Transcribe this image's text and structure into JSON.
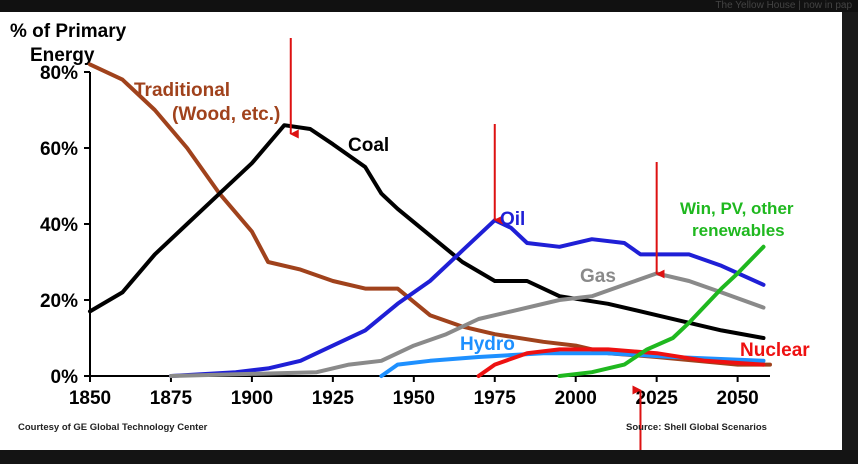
{
  "top_strip_text": "The Yellow House | now in pap",
  "chart_data": {
    "type": "line",
    "ylabel": "% of Primary Energy",
    "ylabel_lines": [
      "% of Primary",
      "Energy"
    ],
    "xlim": [
      1850,
      2060
    ],
    "ylim": [
      0,
      80
    ],
    "x_ticks": [
      "1850",
      "1875",
      "1900",
      "1925",
      "1950",
      "1975",
      "2000",
      "2025",
      "2050"
    ],
    "y_ticks": [
      "0%",
      "20%",
      "40%",
      "60%",
      "80%"
    ],
    "grid": false,
    "series": [
      {
        "name": "Traditional (Wood, etc.)",
        "label_lines": [
          "Traditional",
          "(Wood, etc.)"
        ],
        "color": "#a0421c",
        "points": [
          [
            1850,
            82
          ],
          [
            1860,
            78
          ],
          [
            1870,
            70
          ],
          [
            1880,
            60
          ],
          [
            1890,
            48
          ],
          [
            1900,
            38
          ],
          [
            1905,
            30
          ],
          [
            1915,
            28
          ],
          [
            1925,
            25
          ],
          [
            1935,
            23
          ],
          [
            1945,
            23
          ],
          [
            1955,
            16
          ],
          [
            1965,
            13
          ],
          [
            1975,
            11
          ],
          [
            1990,
            9
          ],
          [
            2000,
            8
          ],
          [
            2010,
            6
          ],
          [
            2025,
            5
          ],
          [
            2050,
            3
          ],
          [
            2060,
            3
          ]
        ]
      },
      {
        "name": "Coal",
        "label_lines": [
          "Coal"
        ],
        "color": "#000000",
        "points": [
          [
            1850,
            17
          ],
          [
            1860,
            22
          ],
          [
            1870,
            32
          ],
          [
            1880,
            40
          ],
          [
            1890,
            48
          ],
          [
            1900,
            56
          ],
          [
            1910,
            66
          ],
          [
            1918,
            65
          ],
          [
            1925,
            61
          ],
          [
            1935,
            55
          ],
          [
            1940,
            48
          ],
          [
            1945,
            44
          ],
          [
            1955,
            37
          ],
          [
            1965,
            30
          ],
          [
            1975,
            25
          ],
          [
            1985,
            25
          ],
          [
            1995,
            21
          ],
          [
            2010,
            19
          ],
          [
            2025,
            16
          ],
          [
            2045,
            12
          ],
          [
            2058,
            10
          ]
        ]
      },
      {
        "name": "Oil",
        "label_lines": [
          "Oil"
        ],
        "color": "#1f1fd6",
        "points": [
          [
            1875,
            0
          ],
          [
            1895,
            1
          ],
          [
            1905,
            2
          ],
          [
            1915,
            4
          ],
          [
            1925,
            8
          ],
          [
            1935,
            12
          ],
          [
            1945,
            19
          ],
          [
            1955,
            25
          ],
          [
            1965,
            33
          ],
          [
            1975,
            41
          ],
          [
            1980,
            39
          ],
          [
            1985,
            35
          ],
          [
            1995,
            34
          ],
          [
            2005,
            36
          ],
          [
            2015,
            35
          ],
          [
            2020,
            32
          ],
          [
            2035,
            32
          ],
          [
            2045,
            29
          ],
          [
            2058,
            24
          ]
        ]
      },
      {
        "name": "Gas",
        "label_lines": [
          "Gas"
        ],
        "color": "#8a8a8a",
        "points": [
          [
            1875,
            0
          ],
          [
            1920,
            1
          ],
          [
            1930,
            3
          ],
          [
            1940,
            4
          ],
          [
            1950,
            8
          ],
          [
            1960,
            11
          ],
          [
            1970,
            15
          ],
          [
            1980,
            17
          ],
          [
            1995,
            20
          ],
          [
            2005,
            21
          ],
          [
            2015,
            24
          ],
          [
            2025,
            27
          ],
          [
            2035,
            25
          ],
          [
            2045,
            22
          ],
          [
            2058,
            18
          ]
        ]
      },
      {
        "name": "Hydro",
        "label_lines": [
          "Hydro"
        ],
        "color": "#1e90ff",
        "points": [
          [
            1940,
            0
          ],
          [
            1945,
            3
          ],
          [
            1955,
            4
          ],
          [
            1970,
            5
          ],
          [
            1990,
            6
          ],
          [
            2010,
            6
          ],
          [
            2030,
            5
          ],
          [
            2058,
            4
          ]
        ]
      },
      {
        "name": "Nuclear",
        "label_lines": [
          "Nuclear"
        ],
        "color": "#ee1111",
        "points": [
          [
            1970,
            0
          ],
          [
            1975,
            3
          ],
          [
            1985,
            6
          ],
          [
            1995,
            7
          ],
          [
            2010,
            7
          ],
          [
            2025,
            6
          ],
          [
            2040,
            4
          ],
          [
            2058,
            3
          ]
        ]
      },
      {
        "name": "Win, PV, other renewables",
        "label_lines": [
          "Win, PV, other",
          "renewables"
        ],
        "color": "#1fb81f",
        "points": [
          [
            1995,
            0
          ],
          [
            2005,
            1
          ],
          [
            2015,
            3
          ],
          [
            2022,
            7
          ],
          [
            2030,
            10
          ],
          [
            2035,
            14
          ],
          [
            2045,
            23
          ],
          [
            2050,
            27
          ],
          [
            2058,
            34
          ]
        ]
      }
    ],
    "annotations": [
      {
        "type": "arrow",
        "x": 1912,
        "color": "#dd1111"
      },
      {
        "type": "arrow",
        "x": 1975,
        "color": "#dd1111"
      },
      {
        "type": "arrow",
        "x": 2025,
        "color": "#dd1111"
      },
      {
        "type": "arrow-up",
        "x": 2020,
        "color": "#dd1111"
      }
    ],
    "credit_left": "Courtesy of GE Global Technology Center",
    "credit_right": "Source: Shell Global Scenarios"
  }
}
